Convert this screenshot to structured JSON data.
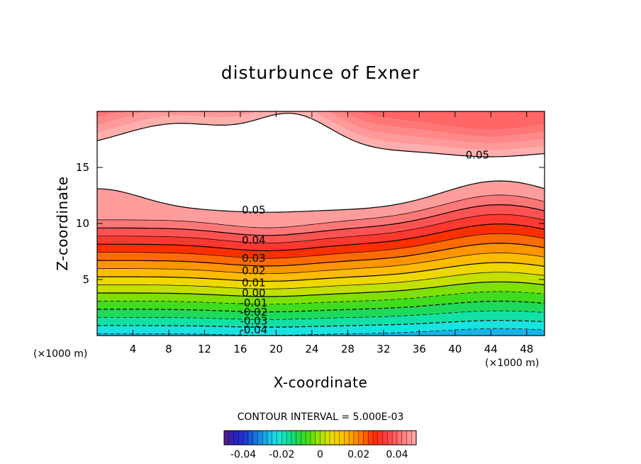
{
  "chart_data": {
    "type": "contour",
    "title": "disturbunce of Exner",
    "xlabel": "X-coordinate",
    "ylabel": "Z-coordinate",
    "x_unit": "(×1000 m)",
    "y_unit": "(×1000 m)",
    "xlim": [
      0,
      50
    ],
    "ylim": [
      0,
      20
    ],
    "xticks": [
      4,
      8,
      12,
      16,
      20,
      24,
      28,
      32,
      36,
      40,
      44,
      48
    ],
    "yticks": [
      5,
      10,
      15
    ],
    "x_tick_labels": [
      "4",
      "8",
      "12",
      "16",
      "20",
      "24",
      "28",
      "32",
      "36",
      "40",
      "44",
      "48"
    ],
    "y_tick_labels": [
      "5",
      "10",
      "15"
    ],
    "contour_interval_text": "CONTOUR INTERVAL = 5.000E-03",
    "contour_interval": 0.005,
    "value_range": [
      -0.05,
      0.05
    ],
    "negative_contours": "dashed",
    "white_region_values": "above 0.05",
    "contour_labels": [
      {
        "text": "0.05",
        "x": 17.5,
        "z": 11.2
      },
      {
        "text": "0.04",
        "x": 17.5,
        "z": 8.5
      },
      {
        "text": "0.03",
        "x": 17.5,
        "z": 6.9
      },
      {
        "text": "0.02",
        "x": 17.5,
        "z": 5.8
      },
      {
        "text": "0.01",
        "x": 17.5,
        "z": 4.7
      },
      {
        "text": "0.00",
        "x": 17.5,
        "z": 3.8
      },
      {
        "text": "-0.01",
        "x": 17.5,
        "z": 2.9
      },
      {
        "text": "-0.02",
        "x": 17.5,
        "z": 2.1
      },
      {
        "text": "-0.03",
        "x": 17.5,
        "z": 1.3
      },
      {
        "text": "-0.04",
        "x": 17.5,
        "z": 0.5
      },
      {
        "text": "0.05",
        "x": 42.5,
        "z": 16.1
      }
    ],
    "colorbar": {
      "tick_labels": [
        "-0.04",
        "-0.02",
        "0",
        "0.02",
        "0.04"
      ],
      "tick_values": [
        -0.04,
        -0.02,
        0,
        0.02,
        0.04
      ],
      "colors": [
        "#5a1a86",
        "#2a1ec0",
        "#1a3cd2",
        "#1878e0",
        "#17b1ea",
        "#18e6e0",
        "#12df9a",
        "#22d846",
        "#50e00a",
        "#a6e000",
        "#e7e000",
        "#ffc500",
        "#ff9c00",
        "#ff6e00",
        "#ff2c00",
        "#ff3a38",
        "#ff5c5c",
        "#ff8787",
        "#ffaeae"
      ]
    }
  }
}
